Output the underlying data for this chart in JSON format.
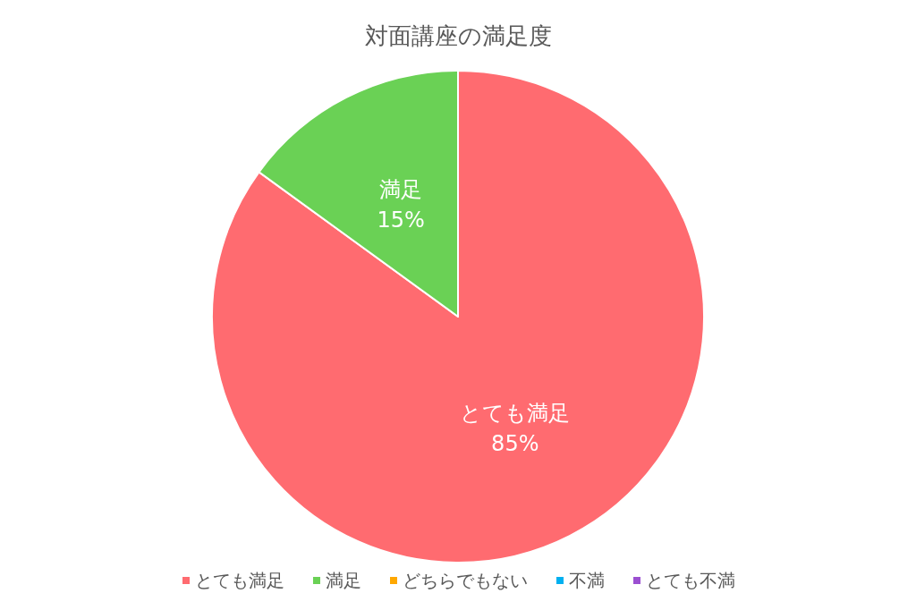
{
  "chart_data": {
    "type": "pie",
    "title": "対面講座の満足度",
    "categories": [
      "とても満足",
      "満足",
      "どちらでもない",
      "不満",
      "とても不満"
    ],
    "values": [
      85,
      15,
      0,
      0,
      0
    ],
    "colors": [
      "#ff6b70",
      "#6ad155",
      "#ffa800",
      "#00b0f0",
      "#9b4fd1"
    ],
    "value_labels": [
      "85%",
      "15%",
      null,
      null,
      null
    ],
    "legend": "bottom"
  }
}
